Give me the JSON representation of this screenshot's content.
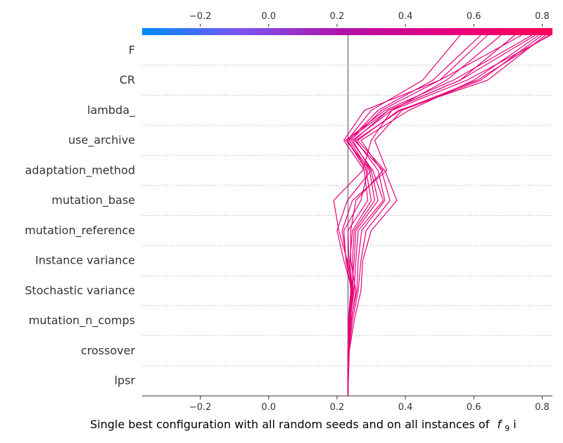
{
  "chart_data": {
    "type": "line",
    "chart_kind": "decision plot",
    "xlabel": "Single best configuration with all random seeds and on all instances of",
    "xlabel_math_symbol": "f",
    "xlabel_math_subscript": "9",
    "xlabel_trailing": " i",
    "xlim": [
      -0.37,
      0.83
    ],
    "x_ticks": [
      -0.2,
      0.0,
      0.2,
      0.4,
      0.6,
      0.8
    ],
    "x_tick_labels": [
      "−0.2",
      "0.0",
      "0.2",
      "0.4",
      "0.6",
      "0.8"
    ],
    "base_value": 0.232,
    "colorbar": {
      "stops": [
        "#008bfb",
        "#7c52f0",
        "#b30fa6",
        "#e7007f",
        "#ff0052"
      ]
    },
    "line_color": "#e6007a",
    "features": [
      "F",
      "CR",
      "lambda_",
      "use_archive",
      "adaptation_method",
      "mutation_base",
      "mutation_reference",
      "Instance variance",
      "Stochastic variance",
      "mutation_n_comps",
      "crossover",
      "lpsr"
    ],
    "series": [
      {
        "values": [
          0.232,
          0.232,
          0.232,
          0.235,
          0.245,
          0.23,
          0.205,
          0.19,
          0.275,
          0.3,
          0.36,
          0.58,
          0.825
        ]
      },
      {
        "values": [
          0.232,
          0.232,
          0.233,
          0.238,
          0.25,
          0.228,
          0.215,
          0.245,
          0.345,
          0.31,
          0.39,
          0.62,
          0.8
        ]
      },
      {
        "values": [
          0.232,
          0.232,
          0.234,
          0.242,
          0.255,
          0.24,
          0.24,
          0.255,
          0.335,
          0.25,
          0.35,
          0.56,
          0.78
        ]
      },
      {
        "values": [
          0.232,
          0.232,
          0.232,
          0.236,
          0.245,
          0.22,
          0.2,
          0.23,
          0.3,
          0.225,
          0.34,
          0.54,
          0.77
        ]
      },
      {
        "values": [
          0.232,
          0.233,
          0.236,
          0.25,
          0.27,
          0.275,
          0.3,
          0.375,
          0.34,
          0.26,
          0.38,
          0.64,
          0.81
        ]
      },
      {
        "values": [
          0.232,
          0.232,
          0.235,
          0.245,
          0.262,
          0.27,
          0.285,
          0.355,
          0.33,
          0.27,
          0.41,
          0.6,
          0.79
        ]
      },
      {
        "values": [
          0.232,
          0.232,
          0.233,
          0.24,
          0.258,
          0.262,
          0.272,
          0.34,
          0.32,
          0.255,
          0.385,
          0.61,
          0.82
        ]
      },
      {
        "values": [
          0.232,
          0.232,
          0.232,
          0.237,
          0.25,
          0.255,
          0.262,
          0.335,
          0.305,
          0.24,
          0.33,
          0.5,
          0.74
        ]
      },
      {
        "values": [
          0.232,
          0.232,
          0.232,
          0.235,
          0.243,
          0.25,
          0.255,
          0.32,
          0.3,
          0.245,
          0.36,
          0.52,
          0.68
        ]
      },
      {
        "values": [
          0.232,
          0.232,
          0.233,
          0.238,
          0.247,
          0.245,
          0.25,
          0.31,
          0.295,
          0.235,
          0.32,
          0.48,
          0.62
        ]
      },
      {
        "values": [
          0.232,
          0.232,
          0.232,
          0.236,
          0.244,
          0.238,
          0.245,
          0.3,
          0.285,
          0.23,
          0.3,
          0.45,
          0.56
        ]
      },
      {
        "values": [
          0.232,
          0.232,
          0.232,
          0.233,
          0.24,
          0.235,
          0.232,
          0.29,
          0.28,
          0.22,
          0.28,
          0.5,
          0.64
        ]
      },
      {
        "values": [
          0.232,
          0.232,
          0.232,
          0.234,
          0.242,
          0.226,
          0.22,
          0.27,
          0.29,
          0.23,
          0.35,
          0.56,
          0.72
        ]
      }
    ]
  }
}
